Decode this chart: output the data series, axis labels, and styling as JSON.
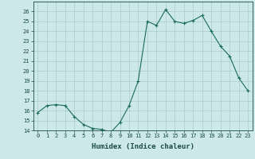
{
  "x": [
    0,
    1,
    2,
    3,
    4,
    5,
    6,
    7,
    8,
    9,
    10,
    11,
    12,
    13,
    14,
    15,
    16,
    17,
    18,
    19,
    20,
    21,
    22,
    23
  ],
  "y": [
    15.8,
    16.5,
    16.6,
    16.5,
    15.4,
    14.6,
    14.2,
    14.1,
    13.8,
    14.8,
    16.5,
    19.0,
    25.0,
    24.6,
    26.2,
    25.0,
    24.8,
    25.1,
    25.6,
    24.0,
    22.5,
    21.5,
    19.3,
    18.0
  ],
  "line_color": "#1a6b5e",
  "marker": "+",
  "marker_size": 3.5,
  "xlabel": "Humidex (Indice chaleur)",
  "xlim": [
    -0.5,
    23.5
  ],
  "ylim": [
    14,
    27
  ],
  "yticks": [
    14,
    15,
    16,
    17,
    18,
    19,
    20,
    21,
    22,
    23,
    24,
    25,
    26
  ],
  "xticks": [
    0,
    1,
    2,
    3,
    4,
    5,
    6,
    7,
    8,
    9,
    10,
    11,
    12,
    13,
    14,
    15,
    16,
    17,
    18,
    19,
    20,
    21,
    22,
    23
  ],
  "bg_color": "#cce8e8",
  "grid_color": "#aacccc",
  "font_color": "#1a4a4a",
  "linewidth": 0.8,
  "xlabel_fontsize": 6.5,
  "tick_fontsize": 5.0,
  "marker_color": "#1a6b5e"
}
